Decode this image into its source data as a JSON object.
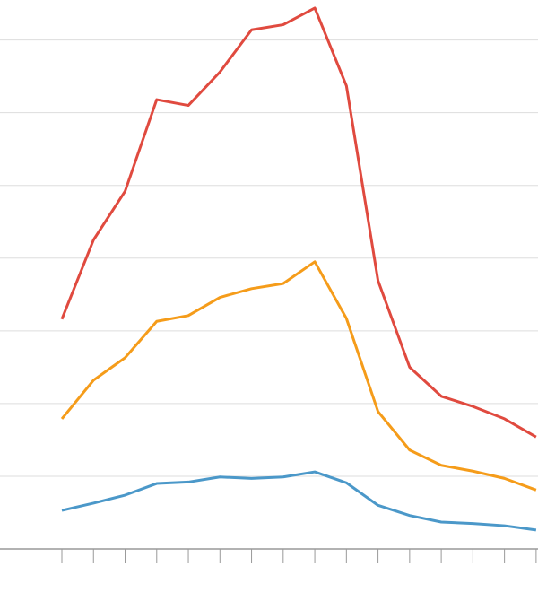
{
  "chart_data": {
    "type": "line",
    "x": [
      0,
      1,
      2,
      3,
      4,
      5,
      6,
      7,
      8,
      9,
      10,
      11,
      12,
      13,
      14,
      15
    ],
    "xlim": [
      -1.957,
      15.06
    ],
    "xticks": [
      0,
      1,
      2,
      3,
      4,
      5,
      6,
      7,
      8,
      9,
      10,
      11,
      12,
      13,
      14,
      15
    ],
    "ylim": [
      0,
      7.55
    ],
    "yticks": [
      0,
      1,
      2,
      3,
      4,
      5,
      6,
      7
    ],
    "grid": true,
    "series": [
      {
        "color": "#e04a3f",
        "values": [
          3.16,
          4.25,
          4.92,
          6.18,
          6.1,
          6.56,
          7.14,
          7.21,
          7.44,
          6.37,
          3.69,
          2.5,
          2.1,
          1.96,
          1.79,
          1.54
        ]
      },
      {
        "color": "#f59c1a",
        "values": [
          1.79,
          2.32,
          2.63,
          3.13,
          3.21,
          3.46,
          3.58,
          3.65,
          3.95,
          3.17,
          1.89,
          1.36,
          1.15,
          1.07,
          0.97,
          0.81
        ]
      },
      {
        "color": "#4b98c9",
        "values": [
          0.53,
          0.63,
          0.74,
          0.9,
          0.92,
          0.99,
          0.97,
          0.99,
          1.06,
          0.91,
          0.6,
          0.46,
          0.37,
          0.35,
          0.32,
          0.26
        ]
      }
    ]
  }
}
